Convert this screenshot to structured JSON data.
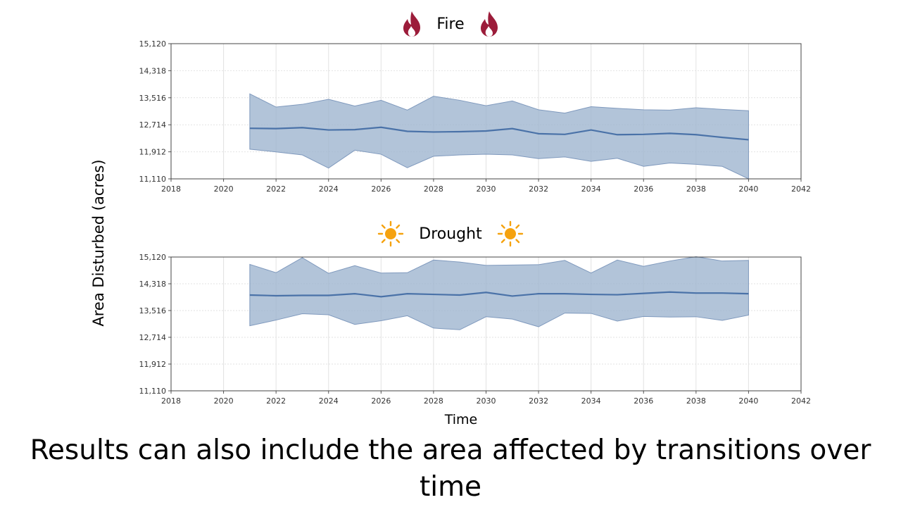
{
  "caption": "Results can also include the area affected by transitions over time",
  "y_axis_label": "Area Disturbed (acres)",
  "x_axis_label": "Time",
  "colors": {
    "band": "#9fb5d0",
    "band_edge": "#7f99bd",
    "mean_line": "#4a72a8",
    "grid": "#e2e2e2",
    "fire_icon": "#9c1c3a",
    "sun_icon": "#f5a20f"
  },
  "panels": [
    {
      "title": "Fire",
      "icon": "fire-icon"
    },
    {
      "title": "Drought",
      "icon": "sun-icon"
    }
  ],
  "chart_data": [
    {
      "type": "area",
      "title": "Fire",
      "xlabel": "Time",
      "ylabel": "Area Disturbed (acres)",
      "xlim": [
        2018,
        2042
      ],
      "ylim": [
        11110,
        15120
      ],
      "x_ticks": [
        "2018",
        "2020",
        "2022",
        "2024",
        "2026",
        "2028",
        "2030",
        "2032",
        "2034",
        "2036",
        "2038",
        "2040",
        "2042"
      ],
      "y_ticks": [
        "11,110",
        "11,912",
        "12,714",
        "13,516",
        "14,318",
        "15,120"
      ],
      "grid": true,
      "x": [
        2021,
        2022,
        2023,
        2024,
        2025,
        2026,
        2027,
        2028,
        2029,
        2030,
        2031,
        2032,
        2033,
        2034,
        2035,
        2036,
        2037,
        2038,
        2039,
        2040
      ],
      "series": [
        {
          "name": "",
          "role": "mean",
          "values": [
            12610,
            12600,
            12630,
            12560,
            12570,
            12640,
            12520,
            12500,
            12510,
            12530,
            12600,
            12450,
            12430,
            12560,
            12420,
            12430,
            12460,
            12420,
            12340,
            12270
          ]
        },
        {
          "name": "",
          "role": "upper",
          "values": [
            13630,
            13240,
            13320,
            13470,
            13270,
            13440,
            13150,
            13560,
            13440,
            13280,
            13420,
            13160,
            13060,
            13250,
            13200,
            13160,
            13150,
            13220,
            13170,
            13130
          ]
        },
        {
          "name": "",
          "role": "lower",
          "values": [
            11990,
            11910,
            11820,
            11430,
            11960,
            11840,
            11440,
            11780,
            11820,
            11840,
            11820,
            11710,
            11760,
            11630,
            11720,
            11480,
            11580,
            11540,
            11480,
            11110
          ]
        }
      ]
    },
    {
      "type": "area",
      "title": "Drought",
      "xlabel": "Time",
      "ylabel": "Area Disturbed (acres)",
      "xlim": [
        2018,
        2042
      ],
      "ylim": [
        11110,
        15120
      ],
      "x_ticks": [
        "2018",
        "2020",
        "2022",
        "2024",
        "2026",
        "2028",
        "2030",
        "2032",
        "2034",
        "2036",
        "2038",
        "2040",
        "2042"
      ],
      "y_ticks": [
        "11,110",
        "11,912",
        "12,714",
        "13,516",
        "14,318",
        "15,120"
      ],
      "grid": true,
      "x": [
        2021,
        2022,
        2023,
        2024,
        2025,
        2026,
        2027,
        2028,
        2029,
        2030,
        2031,
        2032,
        2033,
        2034,
        2035,
        2036,
        2037,
        2038,
        2039,
        2040
      ],
      "series": [
        {
          "name": "",
          "role": "mean",
          "values": [
            13980,
            13960,
            13970,
            13970,
            14020,
            13930,
            14020,
            14000,
            13980,
            14060,
            13950,
            14020,
            14020,
            14000,
            13990,
            14030,
            14070,
            14040,
            14040,
            14020
          ]
        },
        {
          "name": "",
          "role": "upper",
          "values": [
            14900,
            14650,
            15100,
            14630,
            14860,
            14640,
            14650,
            15030,
            14970,
            14870,
            14880,
            14890,
            15020,
            14640,
            15030,
            14840,
            15000,
            15130,
            15000,
            15020
          ]
        },
        {
          "name": "",
          "role": "lower",
          "values": [
            13060,
            13230,
            13420,
            13390,
            13100,
            13210,
            13360,
            12990,
            12940,
            13330,
            13260,
            13030,
            13440,
            13430,
            13200,
            13340,
            13320,
            13330,
            13220,
            13380
          ]
        }
      ]
    }
  ]
}
